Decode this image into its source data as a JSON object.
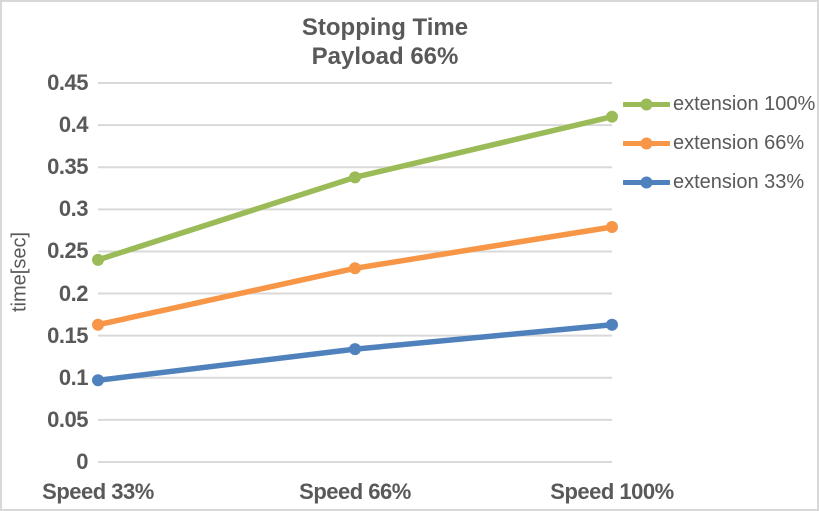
{
  "chart_data": {
    "type": "line",
    "title": "Stopping Time",
    "subtitle": "Payload 66%",
    "categories": [
      "Speed 33%",
      "Speed 66%",
      "Speed 100%"
    ],
    "series": [
      {
        "name": "extension 100%",
        "color": "#9BBB59",
        "values": [
          0.24,
          0.338,
          0.41
        ]
      },
      {
        "name": "extension 66%",
        "color": "#F79646",
        "values": [
          0.163,
          0.23,
          0.279
        ]
      },
      {
        "name": "extension 33%",
        "color": "#4F81BD",
        "values": [
          0.097,
          0.134,
          0.163
        ]
      }
    ],
    "xlabel": "",
    "ylabel": "time[sec]",
    "ylim": [
      0,
      0.45
    ],
    "ytick_step": 0.05,
    "ytick_labels": [
      "0.45",
      "0.4",
      "0.35",
      "0.3",
      "0.25",
      "0.2",
      "0.15",
      "0.1",
      "0.05",
      "0"
    ],
    "grid": true,
    "legend_position": "right",
    "colors": {
      "text": "#595959",
      "gridline": "#D9D9D9",
      "border": "#D8D8D8",
      "background": "#FFFFFF"
    }
  }
}
